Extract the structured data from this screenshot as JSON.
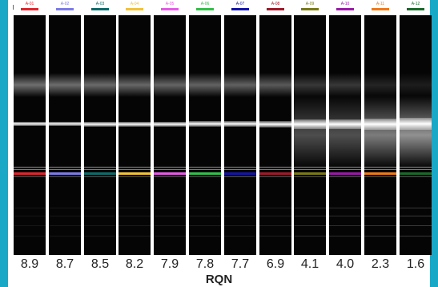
{
  "axis_label": "RQN",
  "lanes": [
    {
      "id": "A-01",
      "color": "#e0262e",
      "rqn": "8.9"
    },
    {
      "id": "A-02",
      "color": "#7b7be8",
      "rqn": "8.7"
    },
    {
      "id": "A-03",
      "color": "#0f6b6a",
      "rqn": "8.5"
    },
    {
      "id": "A-04",
      "color": "#f2c23a",
      "rqn": "8.2"
    },
    {
      "id": "A-05",
      "color": "#e65ae6",
      "rqn": "7.9"
    },
    {
      "id": "A-06",
      "color": "#33c04a",
      "rqn": "7.8"
    },
    {
      "id": "A-07",
      "color": "#1414a8",
      "rqn": "7.7"
    },
    {
      "id": "A-08",
      "color": "#a01a2a",
      "rqn": "6.9"
    },
    {
      "id": "A-09",
      "color": "#7a7a18",
      "rqn": "4.1"
    },
    {
      "id": "A-10",
      "color": "#9a1aa8",
      "rqn": "4.0"
    },
    {
      "id": "A-11",
      "color": "#f07a1a",
      "rqn": "2.3"
    },
    {
      "id": "A-12",
      "color": "#1a6a2a",
      "rqn": "1.6"
    }
  ]
}
